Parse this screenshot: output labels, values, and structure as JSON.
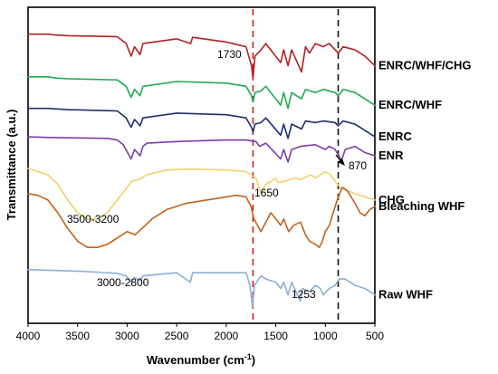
{
  "chart_data": {
    "type": "line",
    "xlabel": "Wavenumber (cm",
    "xlabel_sup": "-1",
    "xlabel_end": ")",
    "ylabel": "Transmittance (a.u.)",
    "xlim": [
      4000,
      500
    ],
    "x_reversed": true,
    "xticks": [
      "4000",
      "3500",
      "3000",
      "2500",
      "2000",
      "1500",
      "1000",
      "500"
    ],
    "grid": false,
    "reference_lines": [
      {
        "x": 1730,
        "color": "#cc2222",
        "style": "dashed"
      },
      {
        "x": 870,
        "color": "#111111",
        "style": "dashed"
      }
    ],
    "annotations": [
      {
        "text": "1730",
        "color": "#cc2222"
      },
      {
        "text": "870",
        "color": "#000000"
      },
      {
        "text": "1650",
        "color": "#000000"
      },
      {
        "text": "3500-3200",
        "color": "#000000"
      },
      {
        "text": "3000-2800",
        "color": "#000000"
      },
      {
        "text": "1253",
        "color": "#000000"
      }
    ],
    "series": [
      {
        "name": "ENRC/WHF/CHG",
        "color": "#b22222",
        "baseline": 0.915,
        "points": [
          [
            4000,
            0
          ],
          [
            3800,
            0
          ],
          [
            3720,
            -0.003
          ],
          [
            3600,
            -0.005
          ],
          [
            3100,
            -0.008
          ],
          [
            3010,
            -0.03
          ],
          [
            2960,
            -0.07
          ],
          [
            2925,
            -0.04
          ],
          [
            2870,
            -0.065
          ],
          [
            2840,
            -0.03
          ],
          [
            2500,
            -0.015
          ],
          [
            2360,
            -0.03
          ],
          [
            2340,
            -0.01
          ],
          [
            2000,
            -0.025
          ],
          [
            1800,
            -0.04
          ],
          [
            1745,
            -0.1
          ],
          [
            1730,
            -0.14
          ],
          [
            1710,
            -0.07
          ],
          [
            1650,
            -0.05
          ],
          [
            1600,
            -0.03
          ],
          [
            1450,
            -0.09
          ],
          [
            1420,
            -0.05
          ],
          [
            1376,
            -0.1
          ],
          [
            1340,
            -0.05
          ],
          [
            1240,
            -0.12
          ],
          [
            1200,
            -0.04
          ],
          [
            1160,
            -0.06
          ],
          [
            1100,
            -0.03
          ],
          [
            1020,
            -0.04
          ],
          [
            960,
            -0.03
          ],
          [
            900,
            -0.05
          ],
          [
            870,
            -0.06
          ],
          [
            820,
            -0.04
          ],
          [
            700,
            -0.05
          ],
          [
            600,
            -0.07
          ],
          [
            500,
            -0.1
          ]
        ]
      },
      {
        "name": "ENRC/WHF",
        "color": "#22aa55",
        "baseline": 0.78,
        "points": [
          [
            4000,
            0
          ],
          [
            3800,
            0
          ],
          [
            3720,
            -0.004
          ],
          [
            3600,
            -0.006
          ],
          [
            3100,
            -0.01
          ],
          [
            3010,
            -0.03
          ],
          [
            2960,
            -0.065
          ],
          [
            2925,
            -0.04
          ],
          [
            2870,
            -0.06
          ],
          [
            2840,
            -0.03
          ],
          [
            2500,
            -0.015
          ],
          [
            2000,
            -0.02
          ],
          [
            1800,
            -0.03
          ],
          [
            1745,
            -0.06
          ],
          [
            1730,
            -0.08
          ],
          [
            1710,
            -0.05
          ],
          [
            1650,
            -0.045
          ],
          [
            1600,
            -0.03
          ],
          [
            1450,
            -0.09
          ],
          [
            1420,
            -0.05
          ],
          [
            1376,
            -0.1
          ],
          [
            1340,
            -0.05
          ],
          [
            1240,
            -0.07
          ],
          [
            1200,
            -0.04
          ],
          [
            1100,
            -0.05
          ],
          [
            1020,
            -0.04
          ],
          [
            900,
            -0.05
          ],
          [
            870,
            -0.06
          ],
          [
            820,
            -0.04
          ],
          [
            700,
            -0.05
          ],
          [
            600,
            -0.07
          ],
          [
            500,
            -0.09
          ]
        ]
      },
      {
        "name": "ENRC",
        "color": "#1c2f6e",
        "baseline": 0.68,
        "points": [
          [
            4000,
            0
          ],
          [
            3800,
            0
          ],
          [
            3600,
            -0.004
          ],
          [
            3100,
            -0.008
          ],
          [
            3010,
            -0.03
          ],
          [
            2960,
            -0.06
          ],
          [
            2925,
            -0.035
          ],
          [
            2870,
            -0.055
          ],
          [
            2840,
            -0.03
          ],
          [
            2500,
            -0.015
          ],
          [
            2000,
            -0.02
          ],
          [
            1800,
            -0.03
          ],
          [
            1745,
            -0.06
          ],
          [
            1730,
            -0.075
          ],
          [
            1710,
            -0.05
          ],
          [
            1650,
            -0.045
          ],
          [
            1600,
            -0.03
          ],
          [
            1450,
            -0.085
          ],
          [
            1420,
            -0.05
          ],
          [
            1376,
            -0.095
          ],
          [
            1340,
            -0.05
          ],
          [
            1240,
            -0.065
          ],
          [
            1200,
            -0.04
          ],
          [
            1100,
            -0.045
          ],
          [
            1020,
            -0.04
          ],
          [
            900,
            -0.045
          ],
          [
            870,
            -0.055
          ],
          [
            820,
            -0.04
          ],
          [
            700,
            -0.05
          ],
          [
            600,
            -0.07
          ],
          [
            500,
            -0.09
          ]
        ]
      },
      {
        "name": "ENR",
        "color": "#7b3fa8",
        "baseline": 0.59,
        "points": [
          [
            4000,
            0
          ],
          [
            3800,
            -0.002
          ],
          [
            3200,
            -0.005
          ],
          [
            3100,
            -0.01
          ],
          [
            3040,
            -0.025
          ],
          [
            2960,
            -0.07
          ],
          [
            2925,
            -0.04
          ],
          [
            2870,
            -0.06
          ],
          [
            2840,
            -0.03
          ],
          [
            2800,
            -0.02
          ],
          [
            2500,
            -0.015
          ],
          [
            2000,
            -0.01
          ],
          [
            1800,
            -0.01
          ],
          [
            1700,
            -0.015
          ],
          [
            1664,
            -0.03
          ],
          [
            1600,
            -0.02
          ],
          [
            1450,
            -0.07
          ],
          [
            1420,
            -0.04
          ],
          [
            1376,
            -0.08
          ],
          [
            1340,
            -0.04
          ],
          [
            1250,
            -0.03
          ],
          [
            1100,
            -0.025
          ],
          [
            1000,
            -0.04
          ],
          [
            960,
            -0.03
          ],
          [
            900,
            -0.04
          ],
          [
            836,
            -0.075
          ],
          [
            800,
            -0.04
          ],
          [
            700,
            -0.03
          ],
          [
            600,
            -0.05
          ],
          [
            500,
            -0.06
          ]
        ]
      },
      {
        "name": "CHG",
        "color": "#f2d16b",
        "baseline": 0.49,
        "points": [
          [
            4000,
            0
          ],
          [
            3900,
            -0.01
          ],
          [
            3800,
            -0.02
          ],
          [
            3700,
            -0.05
          ],
          [
            3600,
            -0.1
          ],
          [
            3500,
            -0.14
          ],
          [
            3400,
            -0.16
          ],
          [
            3300,
            -0.16
          ],
          [
            3200,
            -0.14
          ],
          [
            3100,
            -0.1
          ],
          [
            3000,
            -0.06
          ],
          [
            2950,
            -0.04
          ],
          [
            2880,
            -0.035
          ],
          [
            2800,
            -0.02
          ],
          [
            2600,
            -0.005
          ],
          [
            2400,
            -0.002
          ],
          [
            2000,
            -0.005
          ],
          [
            1800,
            -0.01
          ],
          [
            1700,
            -0.03
          ],
          [
            1650,
            -0.08
          ],
          [
            1600,
            -0.05
          ],
          [
            1540,
            -0.04
          ],
          [
            1500,
            -0.03
          ],
          [
            1480,
            -0.045
          ],
          [
            1400,
            -0.04
          ],
          [
            1300,
            -0.03
          ],
          [
            1250,
            -0.035
          ],
          [
            1150,
            -0.02
          ],
          [
            1100,
            -0.03
          ],
          [
            1000,
            -0.01
          ],
          [
            950,
            -0.02
          ],
          [
            900,
            -0.04
          ],
          [
            850,
            -0.06
          ],
          [
            780,
            -0.07
          ],
          [
            700,
            -0.08
          ],
          [
            600,
            -0.09
          ],
          [
            500,
            -0.1
          ]
        ]
      },
      {
        "name": "Bleaching WHF",
        "color": "#c0641c",
        "baseline": 0.41,
        "points": [
          [
            4000,
            0
          ],
          [
            3900,
            -0.005
          ],
          [
            3800,
            -0.02
          ],
          [
            3700,
            -0.06
          ],
          [
            3600,
            -0.11
          ],
          [
            3500,
            -0.15
          ],
          [
            3400,
            -0.17
          ],
          [
            3300,
            -0.17
          ],
          [
            3200,
            -0.16
          ],
          [
            3100,
            -0.14
          ],
          [
            3000,
            -0.12
          ],
          [
            2920,
            -0.13
          ],
          [
            2850,
            -0.11
          ],
          [
            2750,
            -0.08
          ],
          [
            2600,
            -0.05
          ],
          [
            2400,
            -0.03
          ],
          [
            2200,
            -0.02
          ],
          [
            2000,
            -0.01
          ],
          [
            1900,
            -0.005
          ],
          [
            1800,
            -0.01
          ],
          [
            1750,
            -0.04
          ],
          [
            1720,
            -0.08
          ],
          [
            1650,
            -0.12
          ],
          [
            1600,
            -0.09
          ],
          [
            1550,
            -0.06
          ],
          [
            1500,
            -0.08
          ],
          [
            1450,
            -0.1
          ],
          [
            1420,
            -0.08
          ],
          [
            1370,
            -0.12
          ],
          [
            1320,
            -0.1
          ],
          [
            1250,
            -0.09
          ],
          [
            1200,
            -0.13
          ],
          [
            1160,
            -0.15
          ],
          [
            1100,
            -0.16
          ],
          [
            1060,
            -0.17
          ],
          [
            1030,
            -0.15
          ],
          [
            1000,
            -0.12
          ],
          [
            960,
            -0.1
          ],
          [
            920,
            -0.06
          ],
          [
            880,
            -0.02
          ],
          [
            830,
            0.02
          ],
          [
            780,
            0.01
          ],
          [
            700,
            -0.03
          ],
          [
            650,
            -0.06
          ],
          [
            600,
            -0.07
          ],
          [
            550,
            -0.05
          ],
          [
            500,
            -0.04
          ]
        ]
      },
      {
        "name": "Raw WHF",
        "color": "#8fafd6",
        "baseline": 0.17,
        "points": [
          [
            4000,
            0
          ],
          [
            3800,
            -0.002
          ],
          [
            3500,
            -0.005
          ],
          [
            3300,
            -0.008
          ],
          [
            3100,
            -0.012
          ],
          [
            3010,
            -0.02
          ],
          [
            2960,
            -0.04
          ],
          [
            2925,
            -0.025
          ],
          [
            2870,
            -0.035
          ],
          [
            2840,
            -0.02
          ],
          [
            2500,
            -0.01
          ],
          [
            2362,
            -0.04
          ],
          [
            2340,
            -0.01
          ],
          [
            2000,
            -0.01
          ],
          [
            1800,
            -0.01
          ],
          [
            1760,
            -0.05
          ],
          [
            1735,
            -0.12
          ],
          [
            1715,
            -0.05
          ],
          [
            1650,
            -0.02
          ],
          [
            1600,
            -0.03
          ],
          [
            1500,
            -0.04
          ],
          [
            1450,
            -0.06
          ],
          [
            1420,
            -0.04
          ],
          [
            1376,
            -0.08
          ],
          [
            1340,
            -0.04
          ],
          [
            1253,
            -0.1
          ],
          [
            1230,
            -0.06
          ],
          [
            1160,
            -0.07
          ],
          [
            1100,
            -0.05
          ],
          [
            1050,
            -0.06
          ],
          [
            1020,
            -0.08
          ],
          [
            960,
            -0.06
          ],
          [
            900,
            -0.05
          ],
          [
            860,
            -0.03
          ],
          [
            800,
            -0.03
          ],
          [
            700,
            -0.05
          ],
          [
            600,
            -0.06
          ],
          [
            500,
            -0.08
          ]
        ]
      }
    ]
  }
}
